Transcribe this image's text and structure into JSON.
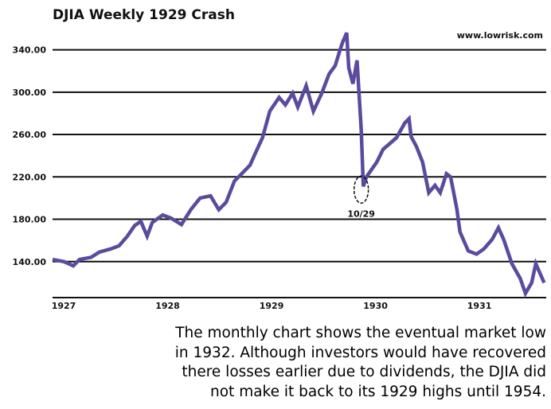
{
  "chart_data": {
    "type": "line",
    "title": "DJIA Weekly 1929 Crash",
    "watermark": "www.lowrisk.com",
    "xlabel": "",
    "ylabel": "",
    "x_ticks": [
      "1927",
      "1928",
      "1929",
      "1930",
      "1931"
    ],
    "x_range": [
      1927,
      1931.75
    ],
    "y_ticks": [
      "140.00",
      "180.00",
      "220.00",
      "260.00",
      "300.00",
      "340.00"
    ],
    "y_tick_values": [
      140,
      180,
      220,
      260,
      300,
      340
    ],
    "ylim": [
      106,
      372
    ],
    "grid": "horizontal",
    "line_color": "#5b4a9e",
    "annotation": {
      "label": "10/29",
      "x": 1929.97,
      "y": 211
    },
    "series": [
      {
        "x": [
          1927.0,
          1927.11,
          1927.2,
          1927.26,
          1927.37,
          1927.45,
          1927.56,
          1927.64,
          1927.72,
          1927.79,
          1927.85,
          1927.91,
          1927.96,
          1928.06,
          1928.14,
          1928.24,
          1928.33,
          1928.42,
          1928.52,
          1928.6,
          1928.67,
          1928.75,
          1928.82,
          1928.9,
          1928.95,
          1929.02,
          1929.09,
          1929.18,
          1929.24,
          1929.31,
          1929.36,
          1929.44,
          1929.51,
          1929.59,
          1929.66,
          1929.72,
          1929.76,
          1929.79,
          1929.83,
          1929.85,
          1929.89,
          1929.93,
          1929.97,
          1929.99,
          1930.02,
          1930.07,
          1930.12,
          1930.18,
          1930.24,
          1930.31,
          1930.39,
          1930.43,
          1930.45,
          1930.5,
          1930.56,
          1930.62,
          1930.68,
          1930.73,
          1930.79,
          1930.83,
          1930.89,
          1930.92,
          1931.0,
          1931.08,
          1931.15,
          1931.23,
          1931.29,
          1931.34,
          1931.42,
          1931.5,
          1931.55,
          1931.61,
          1931.65,
          1931.73
        ],
        "values": [
          142,
          140,
          136,
          142,
          144,
          149,
          152,
          155,
          164,
          174,
          178,
          164,
          177,
          184,
          181,
          175,
          189,
          200,
          202,
          189,
          196,
          216,
          223,
          231,
          242,
          257,
          282,
          295,
          288,
          299,
          286,
          306,
          282,
          299,
          317,
          325,
          338,
          347,
          356,
          323,
          308,
          330,
          264,
          211,
          220,
          227,
          234,
          246,
          251,
          257,
          271,
          275,
          258,
          249,
          234,
          205,
          212,
          205,
          223,
          220,
          190,
          168,
          150,
          147,
          152,
          161,
          172,
          161,
          138,
          124,
          110,
          120,
          138,
          120
        ]
      }
    ]
  },
  "caption": [
    "The monthly chart shows the eventual market low",
    "in 1932. Although investors would have recovered",
    "there losses earlier due to dividends, the DJIA did",
    "not make it back to its 1929 highs until 1954."
  ]
}
